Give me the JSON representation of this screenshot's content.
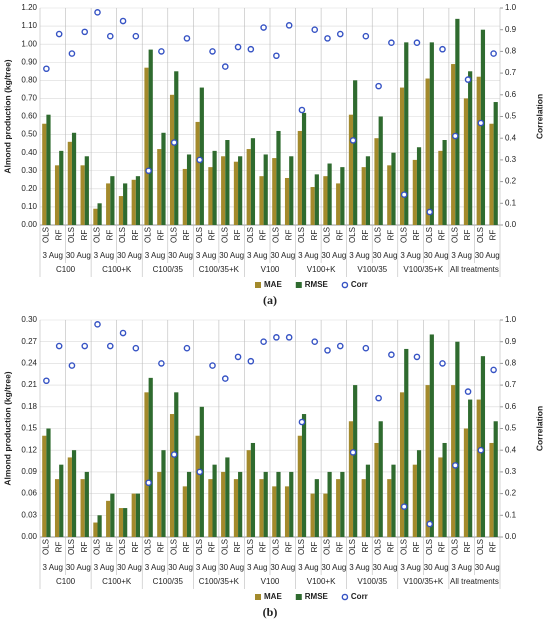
{
  "chart_data": [
    {
      "type": "bar",
      "label": "(a)",
      "y_label": "Almond production (kg/tree)",
      "y2_label": "Correlation",
      "categories": [
        "OLS",
        "RF",
        "OLS",
        "RF",
        "OLS",
        "RF",
        "OLS",
        "RF",
        "OLS",
        "RF",
        "OLS",
        "RF",
        "OLS",
        "RF",
        "OLS",
        "RF",
        "OLS",
        "RF",
        "OLS",
        "RF",
        "OLS",
        "RF",
        "OLS",
        "RF",
        "OLS",
        "RF",
        "OLS",
        "RF",
        "OLS",
        "RF",
        "OLS",
        "RF",
        "OLS",
        "RF",
        "OLS",
        "RF"
      ],
      "dates": [
        "3 Aug",
        "30 Aug",
        "3 Aug",
        "30 Aug",
        "3 Aug",
        "30 Aug",
        "3 Aug",
        "30 Aug",
        "3 Aug",
        "30 Aug",
        "3 Aug",
        "30 Aug",
        "3 Aug",
        "30 Aug",
        "3 Aug",
        "30 Aug",
        "3 Aug",
        "30 Aug"
      ],
      "treatments": [
        "C100",
        "C100+K",
        "C100/35",
        "C100/35+K",
        "V100",
        "V100+K",
        "V100/35",
        "V100/35+K",
        "All treatments"
      ],
      "ylim": [
        0,
        1.2
      ],
      "yticks": [
        {
          "value": 0,
          "label": "0.00"
        },
        {
          "value": 0.1,
          "label": "0.10"
        },
        {
          "value": 0.2,
          "label": "0.20"
        },
        {
          "value": 0.3,
          "label": "0.30"
        },
        {
          "value": 0.4,
          "label": "0.40"
        },
        {
          "value": 0.5,
          "label": "0.50"
        },
        {
          "value": 0.6,
          "label": "0.60"
        },
        {
          "value": 0.7,
          "label": "0.70"
        },
        {
          "value": 0.8,
          "label": "0.80"
        },
        {
          "value": 0.9,
          "label": "0.90"
        },
        {
          "value": 1.0,
          "label": "1.00"
        },
        {
          "value": 1.1,
          "label": "1.10"
        },
        {
          "value": 1.2,
          "label": "1.20"
        }
      ],
      "y2lim": [
        0,
        1
      ],
      "y2ticks": [
        {
          "value": 0,
          "label": "0.0"
        },
        {
          "value": 0.1,
          "label": "0.1"
        },
        {
          "value": 0.2,
          "label": "0.2"
        },
        {
          "value": 0.3,
          "label": "0.3"
        },
        {
          "value": 0.4,
          "label": "0.4"
        },
        {
          "value": 0.5,
          "label": "0.5"
        },
        {
          "value": 0.6,
          "label": "0.6"
        },
        {
          "value": 0.7,
          "label": "0.7"
        },
        {
          "value": 0.8,
          "label": "0.8"
        },
        {
          "value": 0.9,
          "label": "0.9"
        },
        {
          "value": 1,
          "label": "1.0"
        }
      ],
      "series": [
        {
          "name": "MAE",
          "type": "bar",
          "color": "#a38a2c",
          "values": [
            0.56,
            0.33,
            0.46,
            0.33,
            0.09,
            0.23,
            0.16,
            0.25,
            0.87,
            0.42,
            0.72,
            0.31,
            0.57,
            0.32,
            0.38,
            0.35,
            0.42,
            0.27,
            0.37,
            0.26,
            0.52,
            0.21,
            0.27,
            0.23,
            0.61,
            0.32,
            0.48,
            0.33,
            0.76,
            0.36,
            0.81,
            0.41,
            0.89,
            0.7,
            0.82,
            0.56
          ]
        },
        {
          "name": "RMSE",
          "type": "bar",
          "color": "#2f6b2f",
          "values": [
            0.61,
            0.41,
            0.51,
            0.38,
            0.12,
            0.27,
            0.23,
            0.27,
            0.97,
            0.51,
            0.85,
            0.39,
            0.76,
            0.41,
            0.47,
            0.38,
            0.48,
            0.39,
            0.52,
            0.38,
            0.62,
            0.28,
            0.34,
            0.32,
            0.8,
            0.38,
            0.6,
            0.4,
            1.01,
            0.43,
            1.01,
            0.47,
            1.14,
            0.85,
            1.08,
            0.68
          ]
        },
        {
          "name": "Corr",
          "type": "scatter",
          "axis": "y2",
          "color": "#3653c4",
          "values": [
            0.72,
            0.88,
            0.79,
            0.89,
            0.98,
            0.87,
            0.94,
            0.87,
            0.25,
            0.8,
            0.38,
            0.86,
            0.3,
            0.8,
            0.73,
            0.82,
            0.81,
            0.91,
            0.78,
            0.92,
            0.53,
            0.9,
            0.86,
            0.88,
            0.39,
            0.87,
            0.64,
            0.84,
            0.14,
            0.84,
            0.06,
            0.81,
            0.41,
            0.67,
            0.47,
            0.79
          ]
        }
      ]
    },
    {
      "type": "bar",
      "label": "(b)",
      "y_label": "Almond production (kg/tree)",
      "y2_label": "Correlation",
      "categories": [
        "OLS",
        "RF",
        "OLS",
        "RF",
        "OLS",
        "RF",
        "OLS",
        "RF",
        "OLS",
        "RF",
        "OLS",
        "RF",
        "OLS",
        "RF",
        "OLS",
        "RF",
        "OLS",
        "RF",
        "OLS",
        "RF",
        "OLS",
        "RF",
        "OLS",
        "RF",
        "OLS",
        "RF",
        "OLS",
        "RF",
        "OLS",
        "RF",
        "OLS",
        "RF",
        "OLS",
        "RF",
        "OLS",
        "RF"
      ],
      "dates": [
        "3 Aug",
        "30 Aug",
        "3 Aug",
        "30 Aug",
        "3 Aug",
        "30 Aug",
        "3 Aug",
        "30 Aug",
        "3 Aug",
        "30 Aug",
        "3 Aug",
        "30 Aug",
        "3 Aug",
        "30 Aug",
        "3 Aug",
        "30 Aug",
        "3 Aug",
        "30 Aug"
      ],
      "treatments": [
        "C100",
        "C100+K",
        "C100/35",
        "C100/35+K",
        "V100",
        "V100+K",
        "V100/35",
        "V100/35+K",
        "All treatments"
      ],
      "ylim": [
        0,
        0.3
      ],
      "yticks": [
        {
          "value": 0,
          "label": "0.00"
        },
        {
          "value": 0.03,
          "label": "0.03"
        },
        {
          "value": 0.06,
          "label": "0.06"
        },
        {
          "value": 0.09,
          "label": "0.09"
        },
        {
          "value": 0.12,
          "label": "0.12"
        },
        {
          "value": 0.15,
          "label": "0.15"
        },
        {
          "value": 0.18,
          "label": "0.18"
        },
        {
          "value": 0.21,
          "label": "0.21"
        },
        {
          "value": 0.24,
          "label": "0.24"
        },
        {
          "value": 0.27,
          "label": "0.27"
        },
        {
          "value": 0.3,
          "label": "0.30"
        }
      ],
      "y2lim": [
        0,
        1
      ],
      "y2ticks": [
        {
          "value": 0,
          "label": "0.0"
        },
        {
          "value": 0.1,
          "label": "0.1"
        },
        {
          "value": 0.2,
          "label": "0.2"
        },
        {
          "value": 0.3,
          "label": "0.3"
        },
        {
          "value": 0.4,
          "label": "0.4"
        },
        {
          "value": 0.5,
          "label": "0.5"
        },
        {
          "value": 0.6,
          "label": "0.6"
        },
        {
          "value": 0.7,
          "label": "0.7"
        },
        {
          "value": 0.8,
          "label": "0.8"
        },
        {
          "value": 0.9,
          "label": "0.9"
        },
        {
          "value": 1,
          "label": "1.0"
        }
      ],
      "series": [
        {
          "name": "MAE",
          "type": "bar",
          "color": "#a38a2c",
          "values": [
            0.14,
            0.08,
            0.11,
            0.08,
            0.02,
            0.05,
            0.04,
            0.06,
            0.2,
            0.09,
            0.17,
            0.07,
            0.14,
            0.08,
            0.09,
            0.08,
            0.12,
            0.08,
            0.07,
            0.07,
            0.14,
            0.06,
            0.06,
            0.08,
            0.16,
            0.08,
            0.13,
            0.08,
            0.2,
            0.1,
            0.21,
            0.11,
            0.21,
            0.15,
            0.19,
            0.13
          ]
        },
        {
          "name": "RMSE",
          "type": "bar",
          "color": "#2f6b2f",
          "values": [
            0.15,
            0.1,
            0.12,
            0.09,
            0.03,
            0.06,
            0.04,
            0.06,
            0.22,
            0.12,
            0.2,
            0.09,
            0.18,
            0.1,
            0.11,
            0.09,
            0.13,
            0.09,
            0.09,
            0.09,
            0.17,
            0.08,
            0.09,
            0.09,
            0.21,
            0.1,
            0.16,
            0.1,
            0.26,
            0.12,
            0.28,
            0.13,
            0.27,
            0.19,
            0.25,
            0.16
          ]
        },
        {
          "name": "Corr",
          "type": "scatter",
          "axis": "y2",
          "color": "#3653c4",
          "values": [
            0.72,
            0.88,
            0.79,
            0.88,
            0.98,
            0.88,
            0.94,
            0.87,
            0.25,
            0.8,
            0.38,
            0.87,
            0.3,
            0.79,
            0.73,
            0.83,
            0.81,
            0.9,
            0.92,
            0.92,
            0.53,
            0.9,
            0.86,
            0.88,
            0.39,
            0.87,
            0.64,
            0.84,
            0.14,
            0.83,
            0.06,
            0.8,
            0.33,
            0.67,
            0.4,
            0.77
          ]
        }
      ]
    }
  ]
}
